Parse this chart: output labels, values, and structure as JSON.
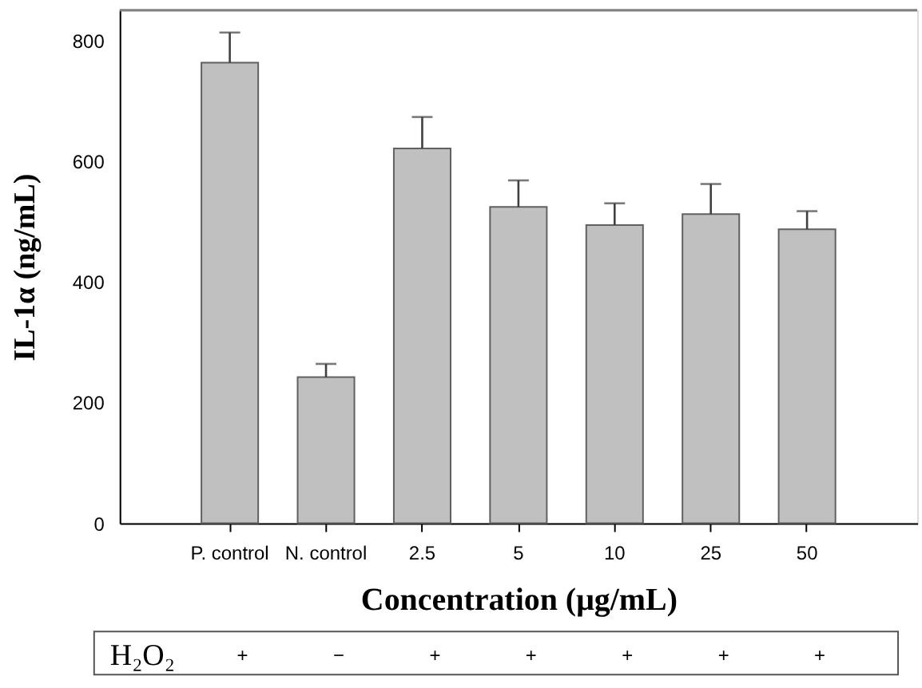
{
  "chart_data": {
    "type": "bar",
    "xlabel": "Concentration (μg/mL)",
    "ylabel": "IL-1α (ng/mL)",
    "categories": [
      "P. control",
      "N. control",
      "2.5",
      "5",
      "10",
      "25",
      "50"
    ],
    "values": [
      763,
      242,
      621,
      524,
      494,
      512,
      487
    ],
    "errors": [
      [
        763,
        813
      ],
      [
        242,
        264
      ],
      [
        621,
        673
      ],
      [
        524,
        568
      ],
      [
        494,
        530
      ],
      [
        512,
        562
      ],
      [
        487,
        517
      ]
    ],
    "color": "#c0c0c0",
    "ylim": [
      0,
      850
    ],
    "yticks": [
      0,
      200,
      400,
      600,
      800
    ],
    "grid": false,
    "annotations": [
      "H₂O₂",
      "+",
      "−",
      "+",
      "+",
      "+",
      "+",
      "+"
    ]
  }
}
